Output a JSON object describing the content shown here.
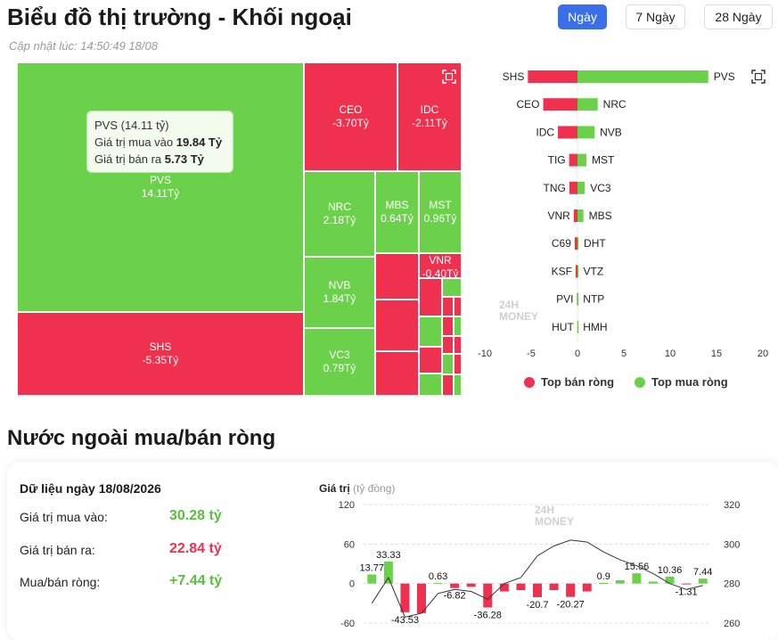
{
  "header": {
    "title": "Biểu đồ thị trường - Khối ngoại",
    "updated": "Cập nhật lúc: 14:50:49 18/08",
    "ranges": [
      "Ngày",
      "7 Ngày",
      "28 Ngày"
    ],
    "active_range": "Ngày"
  },
  "treemap": {
    "tiles": [
      {
        "name": "PVS",
        "value": "14.11Tỷ",
        "side": "buy"
      },
      {
        "name": "SHS",
        "value": "-5.35Tỷ",
        "side": "sell"
      },
      {
        "name": "CEO",
        "value": "-3.70Tỷ",
        "side": "sell"
      },
      {
        "name": "IDC",
        "value": "-2.11Tỷ",
        "side": "sell"
      },
      {
        "name": "NRC",
        "value": "2.18Tỷ",
        "side": "buy"
      },
      {
        "name": "MBS",
        "value": "0.64Tỷ",
        "side": "buy"
      },
      {
        "name": "MST",
        "value": "0.96Tỷ",
        "side": "buy"
      },
      {
        "name": "NVB",
        "value": "1.84Tỷ",
        "side": "buy"
      },
      {
        "name": "VNR",
        "value": "-0.40Tỷ",
        "side": "sell"
      },
      {
        "name": "VC3",
        "value": "0.79Tỷ",
        "side": "buy"
      }
    ],
    "tooltip": {
      "title": "PVS (14.11 tỷ)",
      "buy_label": "Giá trị mua vào",
      "buy_value": "19.84 Tỷ",
      "sell_label": "Giá trị bán ra",
      "sell_value": "5.73 Tỷ"
    }
  },
  "top_chart": {
    "x_ticks": [
      -10,
      -5,
      0,
      5,
      10,
      15,
      20
    ],
    "pairs": [
      {
        "sell": "SHS",
        "sell_val": -5.35,
        "buy": "PVS",
        "buy_val": 14.11
      },
      {
        "sell": "CEO",
        "sell_val": -3.7,
        "buy": "NRC",
        "buy_val": 2.18
      },
      {
        "sell": "IDC",
        "sell_val": -2.11,
        "buy": "NVB",
        "buy_val": 1.84
      },
      {
        "sell": "TIG",
        "sell_val": -0.9,
        "buy": "MST",
        "buy_val": 0.96
      },
      {
        "sell": "TNG",
        "sell_val": -0.88,
        "buy": "VC3",
        "buy_val": 0.79
      },
      {
        "sell": "VNR",
        "sell_val": -0.4,
        "buy": "MBS",
        "buy_val": 0.64
      },
      {
        "sell": "C69",
        "sell_val": -0.3,
        "buy": "DHT",
        "buy_val": 0.1
      },
      {
        "sell": "KSF",
        "sell_val": -0.2,
        "buy": "VTZ",
        "buy_val": 0.05
      },
      {
        "sell": "PVI",
        "sell_val": -0.05,
        "buy": "NTP",
        "buy_val": 0.03
      },
      {
        "sell": "HUT",
        "sell_val": -0.02,
        "buy": "HMH",
        "buy_val": 0.02
      }
    ],
    "legend": {
      "sell": "Top bán ròng",
      "buy": "Top mua ròng"
    },
    "colors": {
      "sell": "#f0304f",
      "buy": "#6cd14a"
    }
  },
  "net_section": {
    "title": "Nước ngoài mua/bán ròng",
    "date_label": "Dữ liệu ngày 18/08/2026",
    "buy_label": "Giá trị mua vào:",
    "buy_value": "30.28 tỷ",
    "sell_label": "Giá trị bán ra:",
    "sell_value": "22.84 tỷ",
    "net_label": "Mua/bán ròng:",
    "net_value": "+7.44 tỷ"
  },
  "chart_data": {
    "type": "bar",
    "ylabel": "Giá trị",
    "ylabel_unit": "(tỷ đồng)",
    "ylim": [
      -60,
      120
    ],
    "y_ticks": [
      120,
      60,
      0,
      -60
    ],
    "y2lim": [
      260,
      320
    ],
    "y2_ticks": [
      320,
      300,
      280,
      260
    ],
    "values": [
      13.77,
      33.33,
      -43.53,
      -45,
      0.63,
      -6.82,
      -5,
      -36.28,
      -12,
      -10,
      -20.7,
      -10,
      -20.27,
      -12,
      0.9,
      5,
      15.56,
      3,
      10.36,
      -1.31,
      7.44
    ],
    "labels": [
      "13.77",
      "33.33",
      "-43.53",
      "",
      "0.63",
      "-6.82",
      "",
      "-36.28",
      "",
      "",
      "-20.7",
      "",
      "-20.27",
      "",
      "0.9",
      "",
      "15.56",
      "",
      "10.36",
      "-1.31",
      "7.44"
    ],
    "line": [
      270,
      283,
      263,
      265,
      275,
      277,
      276,
      272,
      280,
      283,
      294,
      299,
      302,
      301,
      296,
      292,
      289,
      285,
      280,
      277,
      279
    ]
  },
  "watermark": {
    "line1": "24H",
    "line2": "MONEY"
  }
}
